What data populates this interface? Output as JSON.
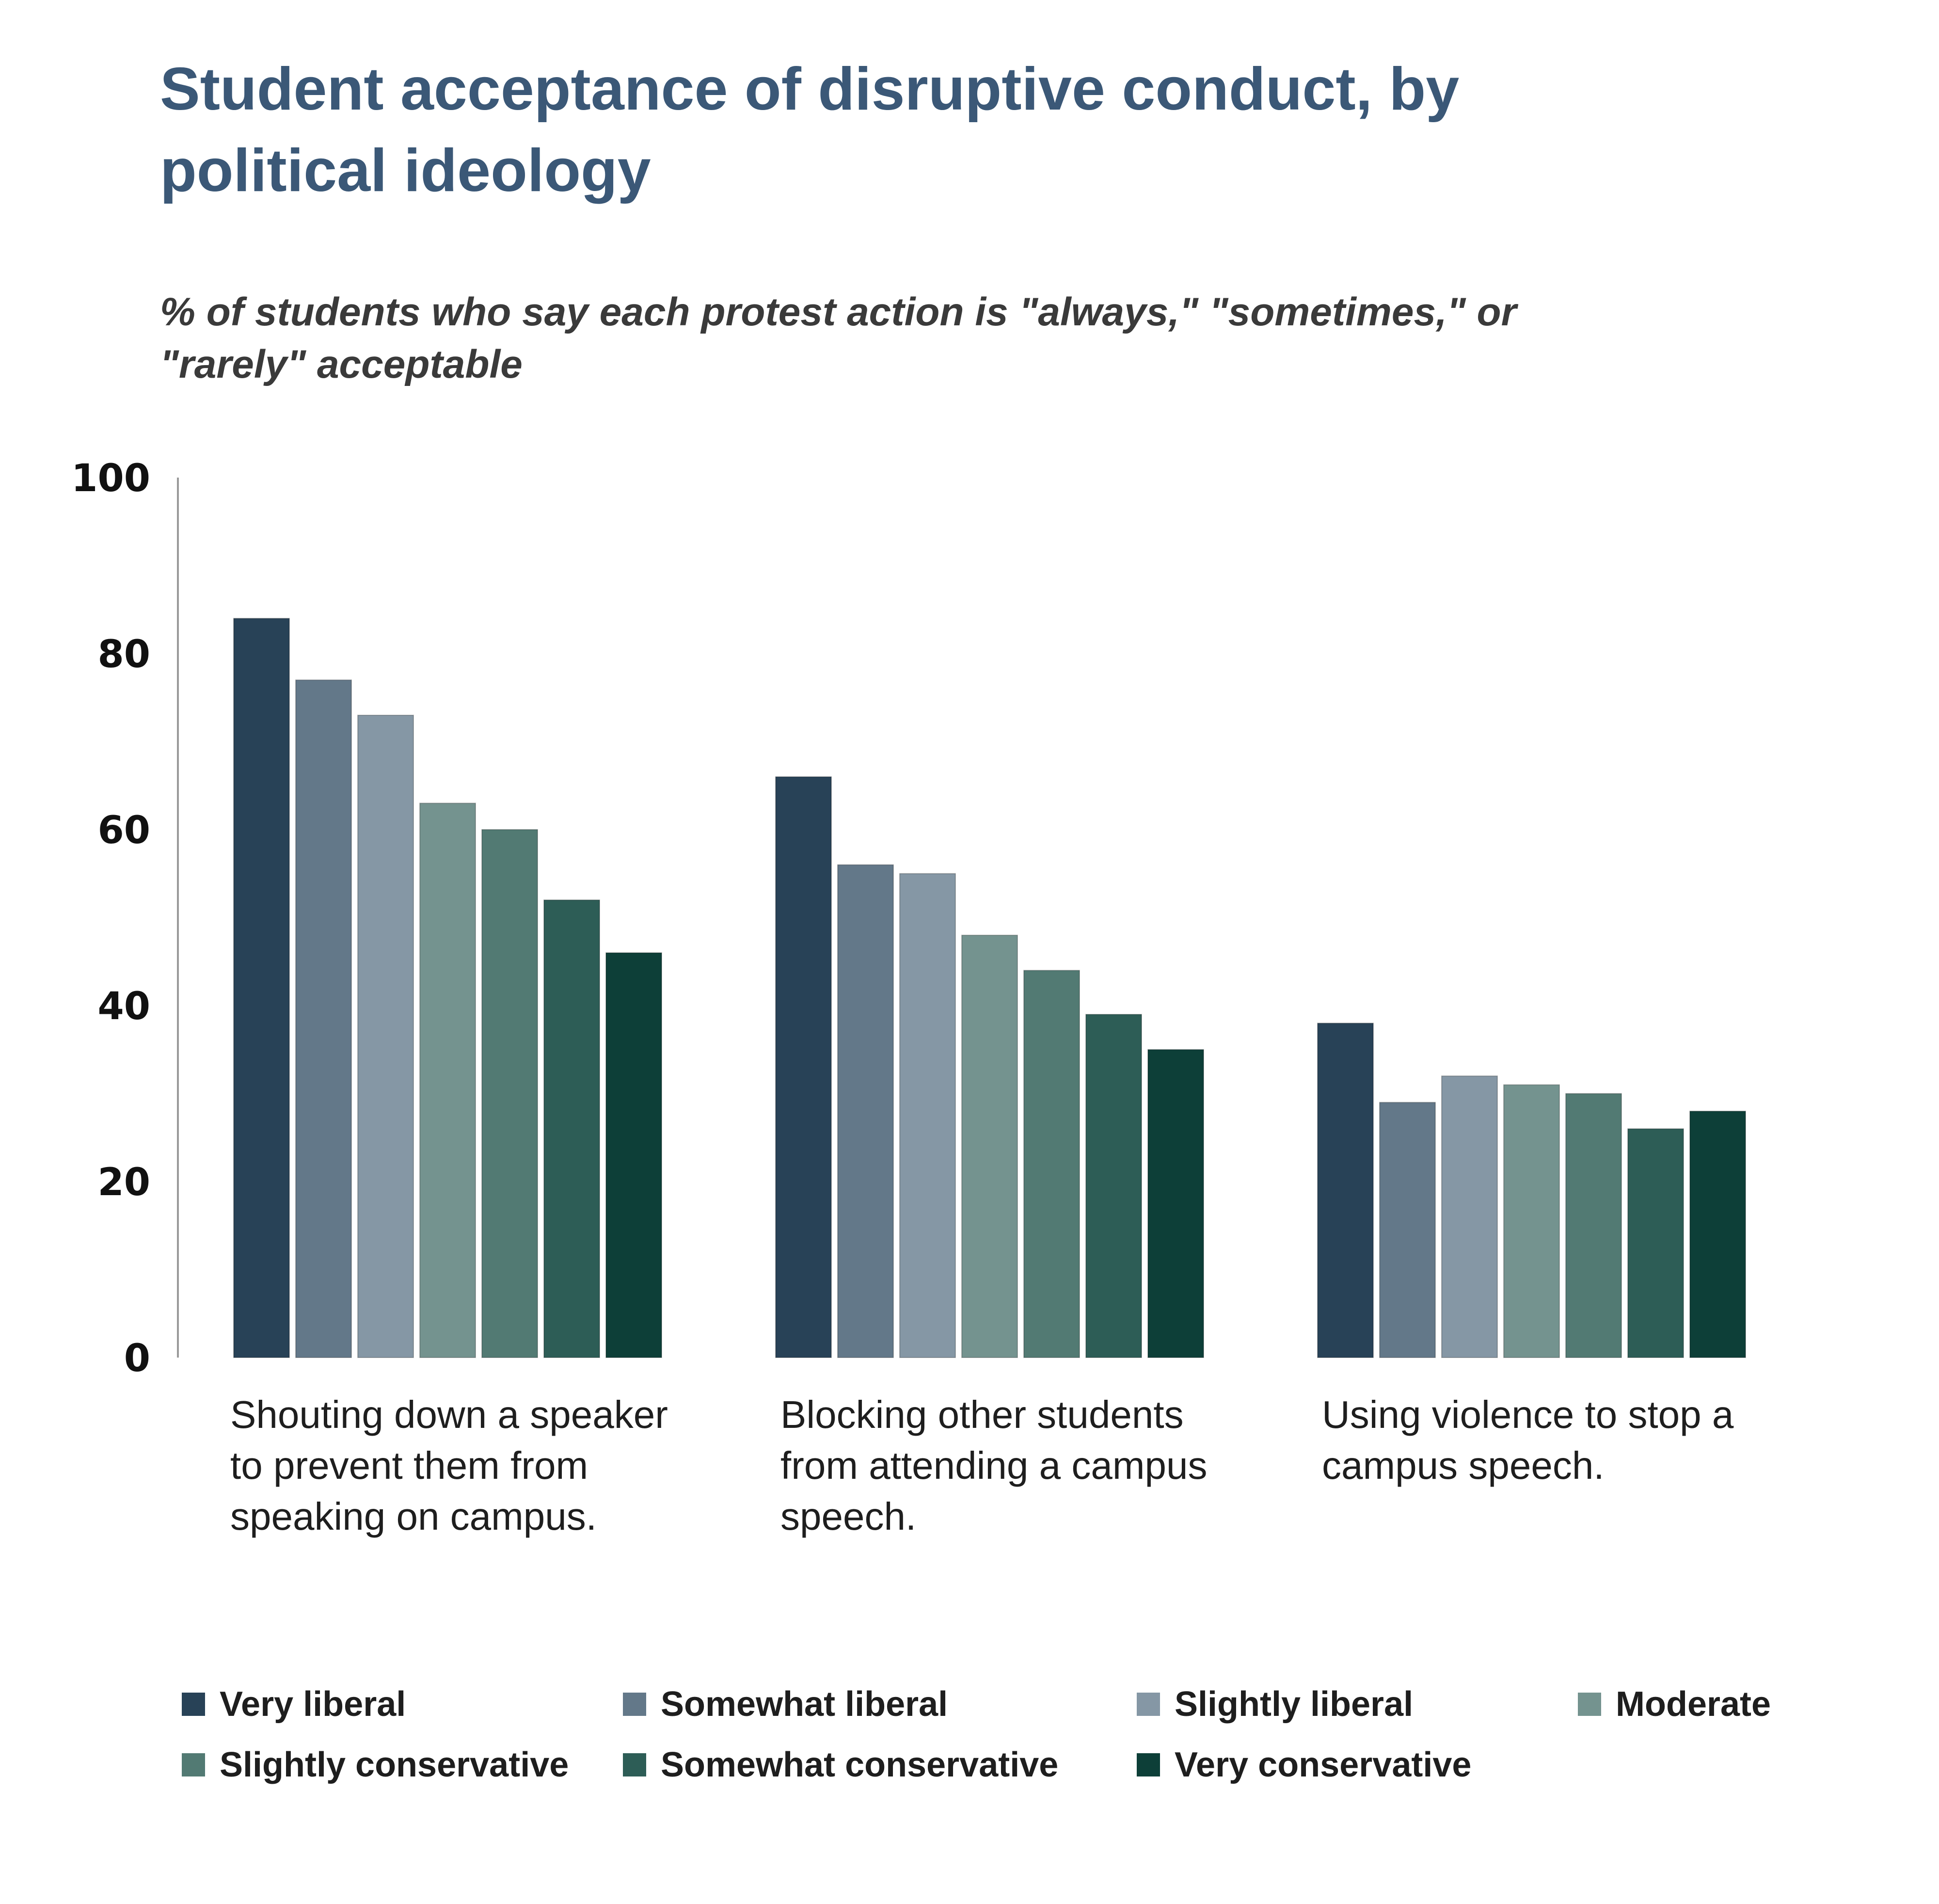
{
  "title": "Student acceptance of disruptive conduct, by political ideology",
  "subtitle": "% of students who say each protest action is \"always,\" \"sometimes,\" or \"rarely\" acceptable",
  "colors": [
    "#284257",
    "#637889",
    "#8597a5",
    "#74938f",
    "#527a73",
    "#2d5d56",
    "#0d3f38"
  ],
  "chart_data": {
    "type": "bar",
    "title": "Student acceptance of disruptive conduct, by political ideology",
    "subtitle": "% of students who say each protest action is \"always,\" \"sometimes,\" or \"rarely\" acceptable",
    "xlabel": "",
    "ylabel": "",
    "ylim": [
      0,
      100
    ],
    "yticks": [
      "0",
      "20",
      "40",
      "60",
      "80",
      "100"
    ],
    "grid": false,
    "legend_position": "bottom",
    "categories": [
      "Shouting down a speaker\nto prevent them from\nspeaking on campus.",
      "Blocking other students\nfrom attending a campus\nspeech.",
      "Using violence to stop a\ncampus speech."
    ],
    "series": [
      {
        "name": "Very liberal",
        "values": [
          84,
          66,
          38
        ]
      },
      {
        "name": "Somewhat liberal",
        "values": [
          77,
          56,
          29
        ]
      },
      {
        "name": "Slightly liberal",
        "values": [
          73,
          55,
          32
        ]
      },
      {
        "name": "Moderate",
        "values": [
          63,
          48,
          31
        ]
      },
      {
        "name": "Slightly conservative",
        "values": [
          60,
          44,
          30
        ]
      },
      {
        "name": "Somewhat conservative",
        "values": [
          52,
          39,
          26
        ]
      },
      {
        "name": "Very conservative",
        "values": [
          46,
          35,
          28
        ]
      }
    ]
  }
}
